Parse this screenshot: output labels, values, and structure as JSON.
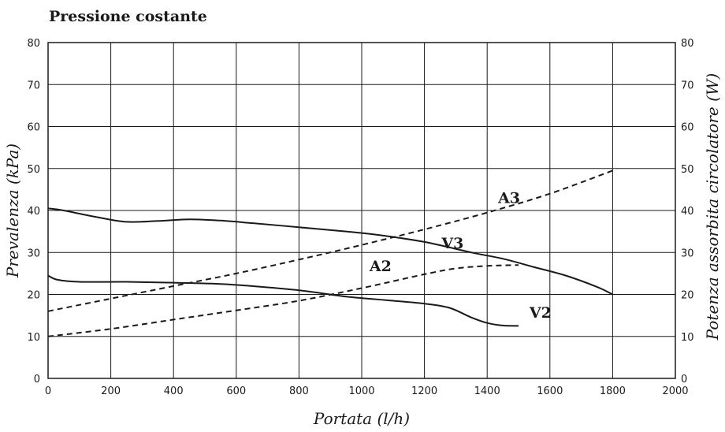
{
  "chart_data": {
    "type": "line",
    "title": "Pressione costante",
    "xlabel": "Portata (l/h)",
    "ylabel_left": "Prevalenza (kPa)",
    "ylabel_right": "Potenza assorbita circolatore (W)",
    "xlim": [
      0,
      2000
    ],
    "ylim": [
      0,
      80
    ],
    "x_ticks": [
      0,
      200,
      400,
      600,
      800,
      1000,
      1200,
      1400,
      1600,
      1800,
      2000
    ],
    "y_ticks": [
      0,
      10,
      20,
      30,
      40,
      50,
      60,
      70,
      80
    ],
    "grid": true,
    "series": [
      {
        "name": "V3",
        "style": "solid",
        "axis": "left",
        "x": [
          0,
          50,
          150,
          250,
          350,
          450,
          550,
          650,
          800,
          950,
          1050,
          1200,
          1350,
          1450,
          1550,
          1650,
          1750,
          1800
        ],
        "y": [
          40.5,
          40,
          38.5,
          37.3,
          37.5,
          37.9,
          37.6,
          37,
          36,
          35,
          34.2,
          32.5,
          30,
          28.5,
          26.5,
          24.5,
          21.8,
          20
        ]
      },
      {
        "name": "V2",
        "style": "solid",
        "axis": "left",
        "x": [
          0,
          30,
          100,
          250,
          400,
          550,
          650,
          800,
          950,
          1100,
          1200,
          1280,
          1350,
          1400,
          1450,
          1500
        ],
        "y": [
          24.5,
          23.5,
          23,
          23,
          22.8,
          22.5,
          22,
          21,
          19.5,
          18.5,
          17.8,
          16.8,
          14.5,
          13.2,
          12.6,
          12.5
        ]
      },
      {
        "name": "A3",
        "style": "dashed",
        "axis": "right",
        "x": [
          0,
          200,
          400,
          600,
          800,
          1000,
          1200,
          1400,
          1600,
          1800
        ],
        "y": [
          16,
          19,
          22,
          25,
          28.3,
          31.8,
          35.5,
          39.5,
          44,
          49.5
        ]
      },
      {
        "name": "A2",
        "style": "dashed",
        "axis": "right",
        "x": [
          0,
          200,
          400,
          600,
          800,
          1000,
          1200,
          1300,
          1400,
          1500
        ],
        "y": [
          10,
          11.8,
          14,
          16.2,
          18.5,
          21.5,
          24.8,
          26.2,
          26.8,
          27
        ]
      }
    ],
    "curve_labels": [
      {
        "text": "A3",
        "x": 1470,
        "y": 41.8
      },
      {
        "text": "V3",
        "x": 1290,
        "y": 31
      },
      {
        "text": "A2",
        "x": 1060,
        "y": 25.5
      },
      {
        "text": "V2",
        "x": 1570,
        "y": 14.5
      }
    ]
  }
}
